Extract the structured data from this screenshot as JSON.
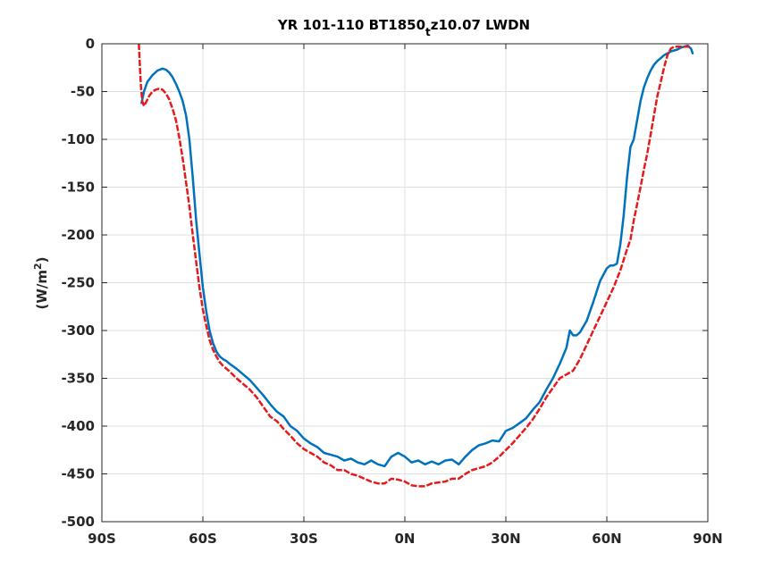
{
  "chart_data": {
    "type": "line",
    "title_main": "YR 101-110 BT1850",
    "title_sub": "t",
    "title_rest": "z10.07 LWDN",
    "ylabel_main": "(W/m",
    "ylabel_sup": "2",
    "ylabel_close": ")",
    "xlim": [
      -90,
      90
    ],
    "ylim": [
      -500,
      0
    ],
    "xticks": [
      -90,
      -60,
      -30,
      0,
      30,
      60,
      90
    ],
    "xtick_labels": [
      "90S",
      "60S",
      "30S",
      "0N",
      "30N",
      "60N",
      "90N"
    ],
    "yticks": [
      0,
      -50,
      -100,
      -150,
      -200,
      -250,
      -300,
      -350,
      -400,
      -450,
      -500
    ],
    "ytick_labels": [
      "0",
      "-50",
      "-100",
      "-150",
      "-200",
      "-250",
      "-300",
      "-350",
      "-400",
      "-450",
      "-500"
    ],
    "grid": true,
    "series": [
      {
        "color": "#0072BD",
        "style": "solid",
        "x": [
          -78.2,
          -77.5,
          -76.5,
          -75,
          -73.5,
          -72,
          -71,
          -70,
          -69,
          -68,
          -67,
          -66,
          -65,
          -64,
          -63,
          -62,
          -61,
          -60,
          -59,
          -58,
          -57,
          -56,
          -55,
          -54,
          -53,
          -52,
          -50,
          -48,
          -46,
          -44,
          -42,
          -40,
          -38,
          -36,
          -34,
          -32,
          -30,
          -28,
          -26,
          -24,
          -22,
          -20,
          -18,
          -16,
          -14,
          -12,
          -10,
          -8,
          -6,
          -4,
          -2,
          0,
          2,
          4,
          6,
          8,
          10,
          12,
          14,
          16,
          18,
          20,
          22,
          24,
          26,
          28,
          30,
          32,
          34,
          36,
          38,
          40,
          42,
          44,
          46,
          48,
          49,
          50,
          51,
          52,
          54,
          56,
          58,
          60,
          61,
          62,
          63,
          64,
          65,
          66,
          67,
          68,
          69,
          70,
          71,
          72,
          73,
          74,
          75,
          76,
          77,
          78,
          79,
          80,
          81,
          82,
          83,
          84,
          85,
          85.5
        ],
        "y": [
          -62,
          -50,
          -40,
          -33,
          -28,
          -26,
          -27,
          -30,
          -35,
          -42,
          -50,
          -60,
          -75,
          -100,
          -140,
          -185,
          -220,
          -255,
          -280,
          -300,
          -313,
          -322,
          -327,
          -330,
          -332,
          -335,
          -340,
          -346,
          -352,
          -360,
          -368,
          -377,
          -385,
          -390,
          -400,
          -405,
          -413,
          -418,
          -422,
          -428,
          -430,
          -432,
          -436,
          -434,
          -438,
          -440,
          -436,
          -440,
          -442,
          -432,
          -428,
          -432,
          -438,
          -436,
          -440,
          -437,
          -440,
          -436,
          -435,
          -440,
          -432,
          -425,
          -420,
          -418,
          -415,
          -416,
          -405,
          -402,
          -397,
          -392,
          -383,
          -375,
          -362,
          -350,
          -335,
          -318,
          -300,
          -305,
          -305,
          -302,
          -290,
          -270,
          -248,
          -235,
          -232,
          -232,
          -230,
          -210,
          -180,
          -140,
          -108,
          -100,
          -80,
          -60,
          -46,
          -36,
          -28,
          -22,
          -18,
          -15,
          -12,
          -10,
          -8,
          -7,
          -6,
          -4,
          -3,
          -2,
          -5,
          -10
        ]
      },
      {
        "color": "#E41A1C",
        "style": "dashed",
        "x": [
          -79,
          -78.7,
          -78.4,
          -78,
          -77.5,
          -77,
          -76,
          -75,
          -74,
          -73,
          -72,
          -71,
          -70,
          -69,
          -68,
          -67,
          -66,
          -65,
          -64,
          -63,
          -62,
          -61,
          -60,
          -59,
          -58,
          -57,
          -56,
          -55,
          -54,
          -53,
          -52,
          -50,
          -48,
          -46,
          -44,
          -42,
          -40,
          -38,
          -36,
          -34,
          -32,
          -30,
          -28,
          -26,
          -24,
          -22,
          -20,
          -18,
          -16,
          -14,
          -12,
          -10,
          -8,
          -6,
          -4,
          -2,
          0,
          2,
          4,
          6,
          8,
          10,
          12,
          14,
          16,
          18,
          20,
          22,
          24,
          26,
          28,
          30,
          32,
          34,
          36,
          38,
          40,
          42,
          44,
          46,
          48,
          50,
          52,
          54,
          56,
          58,
          60,
          62,
          64,
          66,
          67,
          68,
          69,
          70,
          71,
          72,
          73,
          74,
          75,
          76,
          77,
          78,
          79,
          80,
          81,
          82,
          83,
          84,
          85
        ],
        "y": [
          0,
          -25,
          -45,
          -60,
          -65,
          -62,
          -55,
          -50,
          -48,
          -47,
          -48,
          -52,
          -58,
          -68,
          -80,
          -98,
          -120,
          -145,
          -170,
          -200,
          -228,
          -255,
          -278,
          -295,
          -310,
          -320,
          -327,
          -333,
          -337,
          -340,
          -343,
          -350,
          -356,
          -362,
          -370,
          -380,
          -390,
          -395,
          -403,
          -410,
          -418,
          -424,
          -428,
          -432,
          -438,
          -441,
          -446,
          -446,
          -450,
          -452,
          -455,
          -458,
          -460,
          -460,
          -455,
          -456,
          -458,
          -462,
          -463,
          -463,
          -460,
          -459,
          -458,
          -455,
          -455,
          -450,
          -446,
          -444,
          -442,
          -438,
          -432,
          -425,
          -418,
          -410,
          -402,
          -393,
          -382,
          -370,
          -360,
          -350,
          -346,
          -342,
          -330,
          -315,
          -300,
          -285,
          -270,
          -255,
          -237,
          -215,
          -205,
          -185,
          -168,
          -150,
          -132,
          -115,
          -95,
          -75,
          -55,
          -40,
          -25,
          -12,
          -5,
          -3,
          -3,
          -3,
          -3,
          -3,
          -3
        ]
      }
    ]
  }
}
